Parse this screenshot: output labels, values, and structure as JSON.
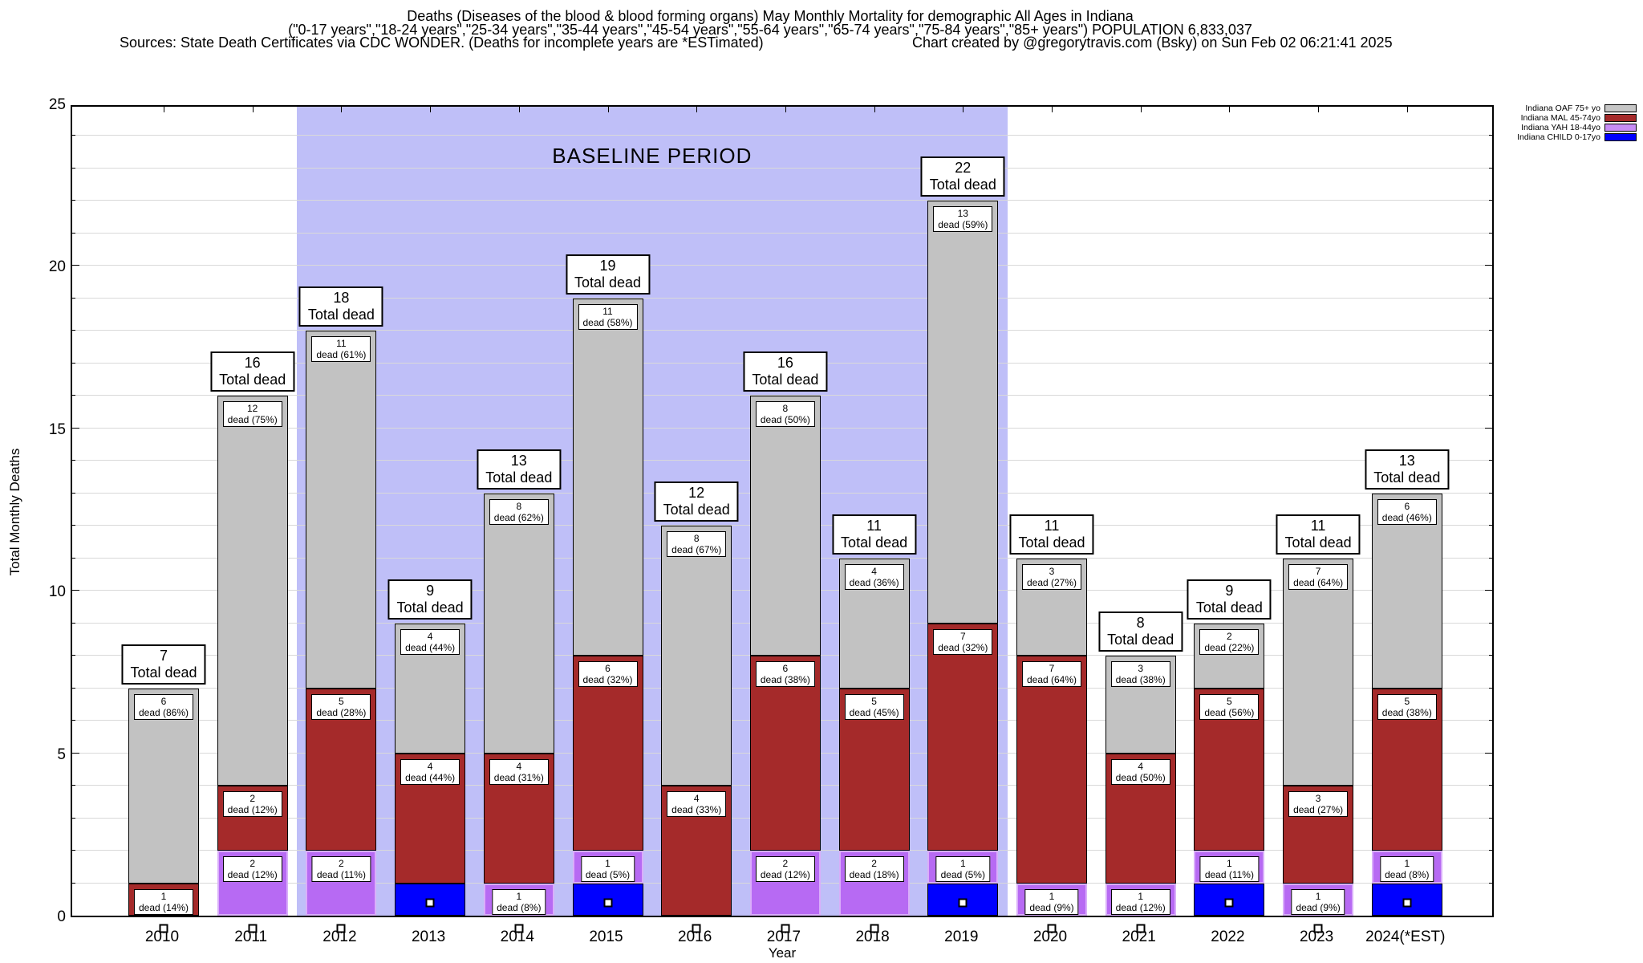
{
  "header": {
    "title_line1": "Deaths (Diseases of the blood & blood forming organs) May Monthly Mortality for demographic All Ages in Indiana",
    "title_line2": "(\"0-17 years\",\"18-24 years\",\"25-34 years\",\"35-44 years\",\"45-54 years\",\"55-64 years\",\"65-74 years\",\"75-84 years\",\"85+ years\") POPULATION 6,833,037",
    "sources_line": "Sources: State Death Certificates via CDC WONDER. (Deaths for incomplete years are *ESTimated)",
    "credit_line": "Chart created by @gregorytravis.com (Bsky) on Sun Feb 02 06:21:41 2025"
  },
  "chart_data": {
    "type": "bar",
    "stacked": true,
    "title": "Deaths (Diseases of the blood & blood forming organs) May Monthly Mortality for demographic All Ages in Indiana",
    "xlabel": "Year",
    "ylabel": "Total Monthly Deaths",
    "ylim": [
      0,
      25
    ],
    "yticks": [
      0,
      5,
      10,
      15,
      20,
      25
    ],
    "grid": "horizontal, every 1 unit",
    "legend_position": "top-right, outside plot",
    "categories": [
      "2010",
      "2011",
      "2012",
      "2013",
      "2014",
      "2015",
      "2016",
      "2017",
      "2018",
      "2019",
      "2020",
      "2021",
      "2022",
      "2023",
      "2024(*EST)"
    ],
    "totals": [
      7,
      16,
      18,
      9,
      13,
      19,
      12,
      16,
      11,
      22,
      11,
      8,
      9,
      11,
      13
    ],
    "total_label_suffix": "Total dead",
    "series": [
      {
        "name": "Indiana CHILD 0-17yo",
        "values": [
          0,
          0,
          0,
          1,
          0,
          1,
          0,
          0,
          0,
          1,
          0,
          0,
          1,
          0,
          1
        ]
      },
      {
        "name": "Indiana YAH 18-44yo",
        "values": [
          0,
          2,
          2,
          0,
          1,
          1,
          0,
          2,
          2,
          1,
          1,
          1,
          1,
          1,
          1
        ]
      },
      {
        "name": "Indiana MAL 45-74yo",
        "values": [
          1,
          2,
          5,
          4,
          4,
          6,
          4,
          6,
          5,
          7,
          7,
          4,
          5,
          3,
          5
        ]
      },
      {
        "name": "Indiana OAF 75+ yo",
        "values": [
          6,
          12,
          11,
          4,
          8,
          11,
          8,
          8,
          4,
          13,
          3,
          3,
          2,
          7,
          6
        ]
      }
    ],
    "baseline_period": {
      "label": "BASELINE PERIOD",
      "from": "2012",
      "to": "2019",
      "color": "#bfbff8"
    },
    "legend": [
      {
        "label": "Indiana OAF 75+ yo",
        "color": "#c6c6c6"
      },
      {
        "label": "Indiana MAL 45-74yo",
        "color": "#a52a2a"
      },
      {
        "label": "Indiana YAH 18-44yo",
        "color": "#c88df7"
      },
      {
        "label": "Indiana CHILD 0-17yo",
        "color": "#0000ff"
      }
    ],
    "colors": {
      "OAF": {
        "fill": "#c2c2c2",
        "border": "#000000"
      },
      "MAL": {
        "fill": "#a52a2a",
        "border": "#000000"
      },
      "YAH": {
        "fill": "#b76af3",
        "border": "#d9aefa"
      },
      "CHILD": {
        "fill": "#0000ff",
        "border": "#000000"
      },
      "gridline": "#d9d9d9"
    },
    "bars": [
      {
        "year": "2010",
        "total": 7,
        "marker": "below-axis",
        "segments": [
          {
            "series": "MAL",
            "value": 1,
            "label_num": "1",
            "label_pct": "dead (14%)"
          },
          {
            "series": "OAF",
            "value": 6,
            "label_num": "6",
            "label_pct": "dead (86%)"
          }
        ]
      },
      {
        "year": "2011",
        "total": 16,
        "marker": "below-axis",
        "segments": [
          {
            "series": "YAH",
            "value": 2,
            "label_num": "2",
            "label_pct": "dead (12%)"
          },
          {
            "series": "MAL",
            "value": 2,
            "label_num": "2",
            "label_pct": "dead (12%)"
          },
          {
            "series": "OAF",
            "value": 12,
            "label_num": "12",
            "label_pct": "dead (75%)"
          }
        ]
      },
      {
        "year": "2012",
        "total": 18,
        "marker": "below-axis",
        "segments": [
          {
            "series": "YAH",
            "value": 2,
            "label_num": "2",
            "label_pct": "dead (11%)"
          },
          {
            "series": "MAL",
            "value": 5,
            "label_num": "5",
            "label_pct": "dead (28%)"
          },
          {
            "series": "OAF",
            "value": 11,
            "label_num": "11",
            "label_pct": "dead (61%)"
          }
        ]
      },
      {
        "year": "2013",
        "total": 9,
        "marker": "in-bar",
        "segments": [
          {
            "series": "CHILD",
            "value": 1
          },
          {
            "series": "MAL",
            "value": 4,
            "label_num": "4",
            "label_pct": "dead (44%)"
          },
          {
            "series": "OAF",
            "value": 4,
            "label_num": "4",
            "label_pct": "dead (44%)"
          }
        ]
      },
      {
        "year": "2014",
        "total": 13,
        "marker": "below-axis",
        "segments": [
          {
            "series": "YAH",
            "value": 1,
            "label_num": "1",
            "label_pct": "dead (8%)"
          },
          {
            "series": "MAL",
            "value": 4,
            "label_num": "4",
            "label_pct": "dead (31%)"
          },
          {
            "series": "OAF",
            "value": 8,
            "label_num": "8",
            "label_pct": "dead (62%)"
          }
        ]
      },
      {
        "year": "2015",
        "total": 19,
        "marker": "in-bar",
        "segments": [
          {
            "series": "CHILD",
            "value": 1
          },
          {
            "series": "YAH",
            "value": 1,
            "label_num": "1",
            "label_pct": "dead (5%)"
          },
          {
            "series": "MAL",
            "value": 6,
            "label_num": "6",
            "label_pct": "dead (32%)"
          },
          {
            "series": "OAF",
            "value": 11,
            "label_num": "11",
            "label_pct": "dead (58%)"
          }
        ]
      },
      {
        "year": "2016",
        "total": 12,
        "marker": "below-axis",
        "segments": [
          {
            "series": "MAL",
            "value": 4,
            "label_num": "4",
            "label_pct": "dead (33%)"
          },
          {
            "series": "OAF",
            "value": 8,
            "label_num": "8",
            "label_pct": "dead (67%)"
          }
        ]
      },
      {
        "year": "2017",
        "total": 16,
        "marker": "below-axis",
        "segments": [
          {
            "series": "YAH",
            "value": 2,
            "label_num": "2",
            "label_pct": "dead (12%)"
          },
          {
            "series": "MAL",
            "value": 6,
            "label_num": "6",
            "label_pct": "dead (38%)"
          },
          {
            "series": "OAF",
            "value": 8,
            "label_num": "8",
            "label_pct": "dead (50%)"
          }
        ]
      },
      {
        "year": "2018",
        "total": 11,
        "marker": "below-axis",
        "segments": [
          {
            "series": "YAH",
            "value": 2,
            "label_num": "2",
            "label_pct": "dead (18%)"
          },
          {
            "series": "MAL",
            "value": 5,
            "label_num": "5",
            "label_pct": "dead (45%)"
          },
          {
            "series": "OAF",
            "value": 4,
            "label_num": "4",
            "label_pct": "dead (36%)"
          }
        ]
      },
      {
        "year": "2019",
        "total": 22,
        "marker": "in-bar",
        "segments": [
          {
            "series": "CHILD",
            "value": 1
          },
          {
            "series": "YAH",
            "value": 1,
            "label_num": "1",
            "label_pct": "dead (5%)"
          },
          {
            "series": "MAL",
            "value": 7,
            "label_num": "7",
            "label_pct": "dead (32%)"
          },
          {
            "series": "OAF",
            "value": 13,
            "label_num": "13",
            "label_pct": "dead (59%)"
          }
        ]
      },
      {
        "year": "2020",
        "total": 11,
        "marker": "below-axis",
        "segments": [
          {
            "series": "YAH",
            "value": 1,
            "label_num": "1",
            "label_pct": "dead (9%)"
          },
          {
            "series": "MAL",
            "value": 7,
            "label_num": "7",
            "label_pct": "dead (64%)"
          },
          {
            "series": "OAF",
            "value": 3,
            "label_num": "3",
            "label_pct": "dead (27%)"
          }
        ]
      },
      {
        "year": "2021",
        "total": 8,
        "marker": "below-axis",
        "segments": [
          {
            "series": "YAH",
            "value": 1,
            "label_num": "1",
            "label_pct": "dead (12%)"
          },
          {
            "series": "MAL",
            "value": 4,
            "label_num": "4",
            "label_pct": "dead (50%)"
          },
          {
            "series": "OAF",
            "value": 3,
            "label_num": "3",
            "label_pct": "dead (38%)"
          }
        ]
      },
      {
        "year": "2022",
        "total": 9,
        "marker": "in-bar",
        "segments": [
          {
            "series": "CHILD",
            "value": 1
          },
          {
            "series": "YAH",
            "value": 1,
            "label_num": "1",
            "label_pct": "dead (11%)"
          },
          {
            "series": "MAL",
            "value": 5,
            "label_num": "5",
            "label_pct": "dead (56%)"
          },
          {
            "series": "OAF",
            "value": 2,
            "label_num": "2",
            "label_pct": "dead (22%)"
          }
        ]
      },
      {
        "year": "2023",
        "total": 11,
        "marker": "below-axis",
        "segments": [
          {
            "series": "YAH",
            "value": 1,
            "label_num": "1",
            "label_pct": "dead (9%)"
          },
          {
            "series": "MAL",
            "value": 3,
            "label_num": "3",
            "label_pct": "dead (27%)"
          },
          {
            "series": "OAF",
            "value": 7,
            "label_num": "7",
            "label_pct": "dead (64%)"
          }
        ]
      },
      {
        "year": "2024(*EST)",
        "total": 13,
        "marker": "in-bar",
        "segments": [
          {
            "series": "CHILD",
            "value": 1
          },
          {
            "series": "YAH",
            "value": 1,
            "label_num": "1",
            "label_pct": "dead (8%)"
          },
          {
            "series": "MAL",
            "value": 5,
            "label_num": "5",
            "label_pct": "dead (38%)"
          },
          {
            "series": "OAF",
            "value": 6,
            "label_num": "6",
            "label_pct": "dead (46%)"
          }
        ]
      }
    ]
  }
}
